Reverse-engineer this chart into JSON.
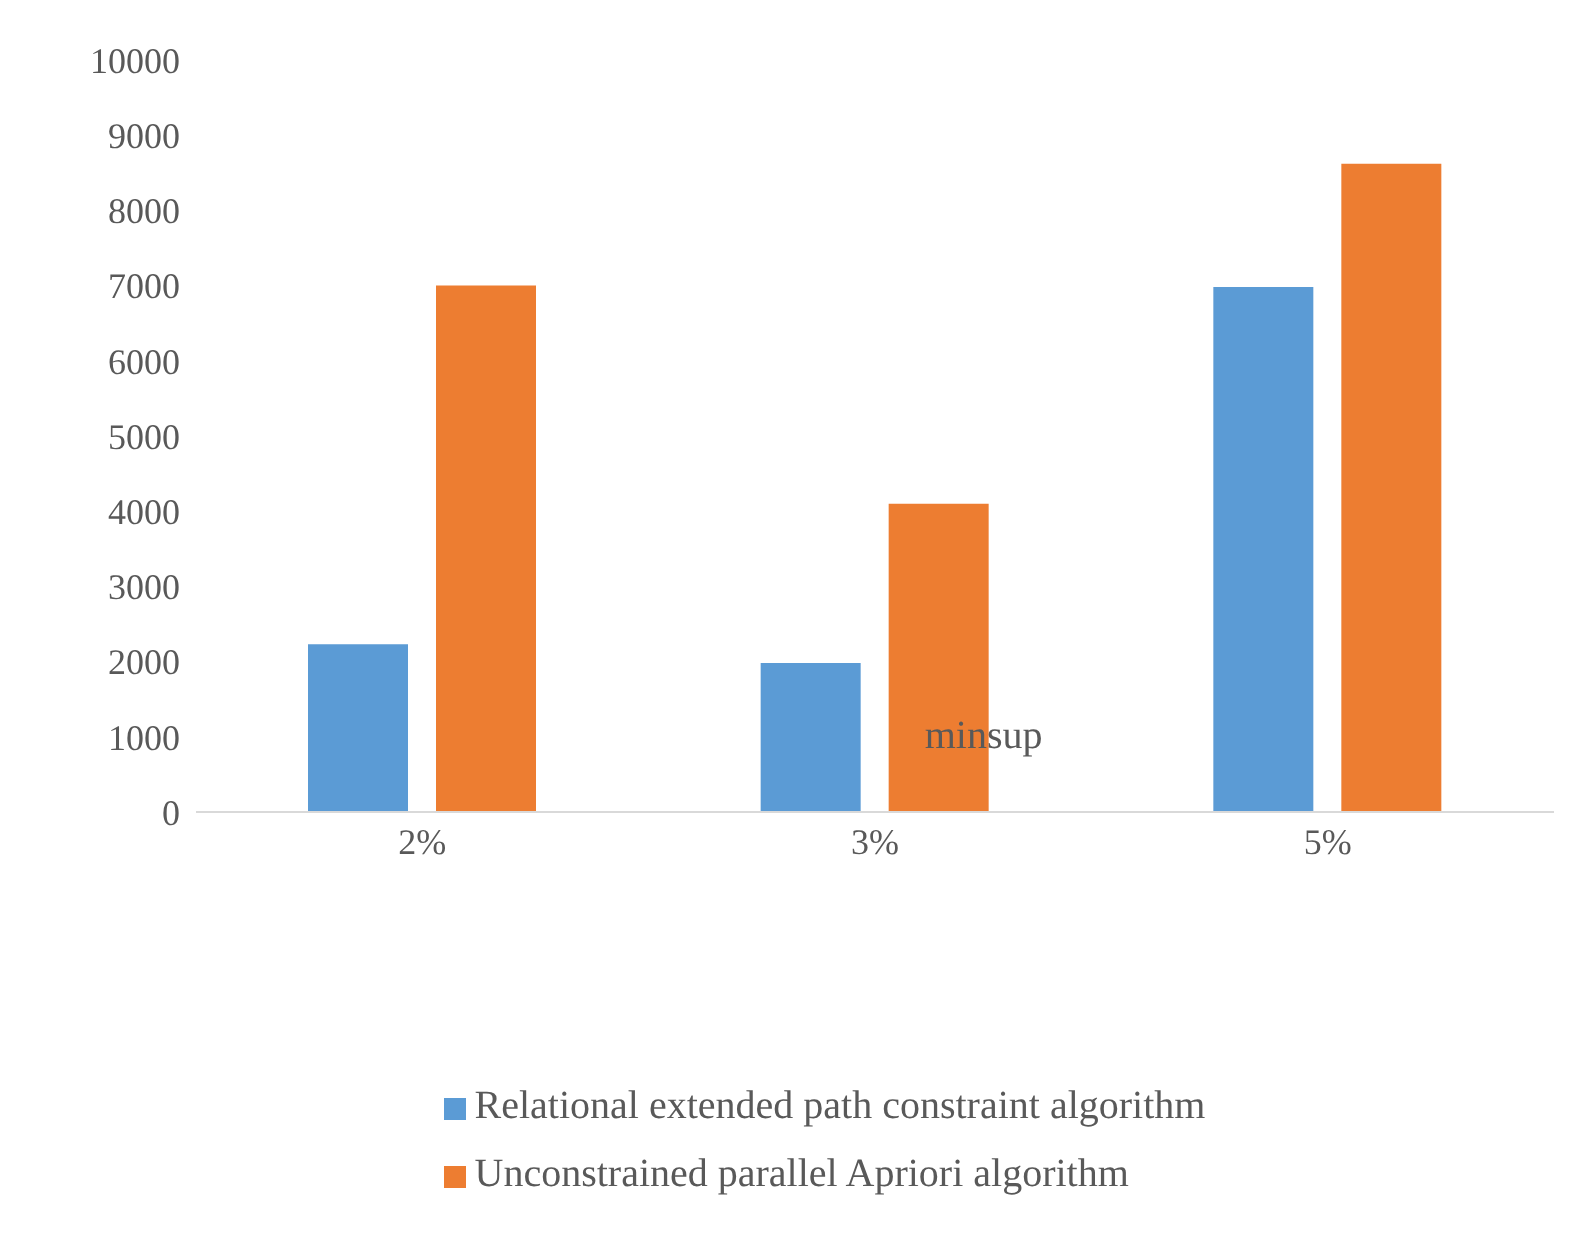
{
  "chart_data": {
    "type": "bar",
    "xlabel": "minsup",
    "categories": [
      "2%",
      "3%",
      "5%"
    ],
    "series": [
      {
        "name": "Relational extended path constraint algorithm",
        "color": "#5b9bd5",
        "values": [
          2230,
          1980,
          6980
        ]
      },
      {
        "name": "Unconstrained parallel Apriori algorithm",
        "color": "#ed7d31",
        "values": [
          7000,
          4100,
          8620
        ]
      }
    ],
    "ylim": [
      0,
      10000
    ],
    "yticks": [
      0,
      1000,
      2000,
      3000,
      4000,
      5000,
      6000,
      7000,
      8000,
      9000,
      10000
    ],
    "grid": false,
    "legend": "bottom"
  }
}
